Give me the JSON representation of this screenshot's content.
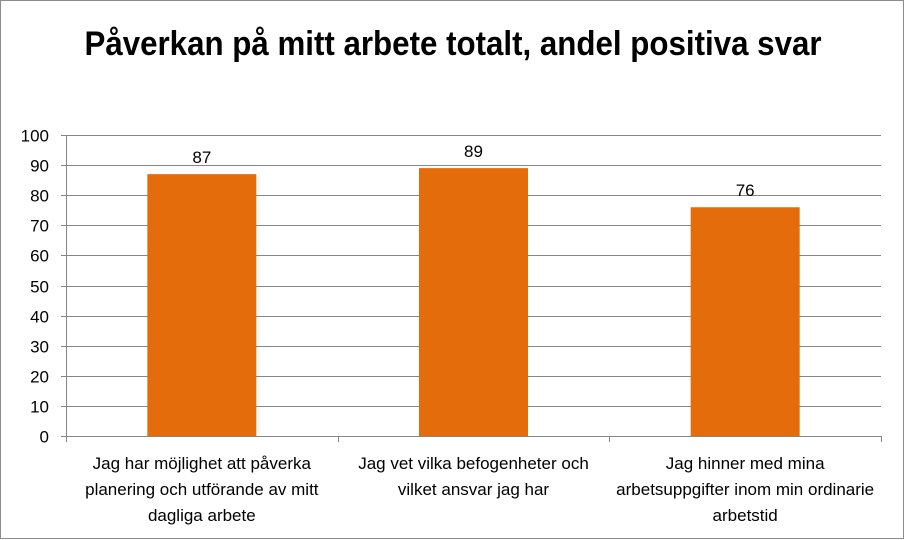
{
  "chart_data": {
    "type": "bar",
    "title": "Påverkan på mitt arbete totalt, andel positiva svar",
    "categories": [
      "Jag har möjlighet att påverka planering och utförande av mitt dagliga arbete",
      "Jag vet vilka befogenheter och vilket ansvar jag har",
      "Jag hinner med mina arbetsuppgifter inom min ordinarie arbetstid"
    ],
    "values": [
      87,
      89,
      76
    ],
    "data_labels": [
      "87",
      "89",
      "76"
    ],
    "yticks": [
      "0",
      "10",
      "20",
      "30",
      "40",
      "50",
      "60",
      "70",
      "80",
      "90",
      "100"
    ],
    "ylim": [
      0,
      100
    ],
    "xlabel": "",
    "ylabel": "",
    "grid": true,
    "legend": "none",
    "bar_color": "#E46C0A"
  }
}
